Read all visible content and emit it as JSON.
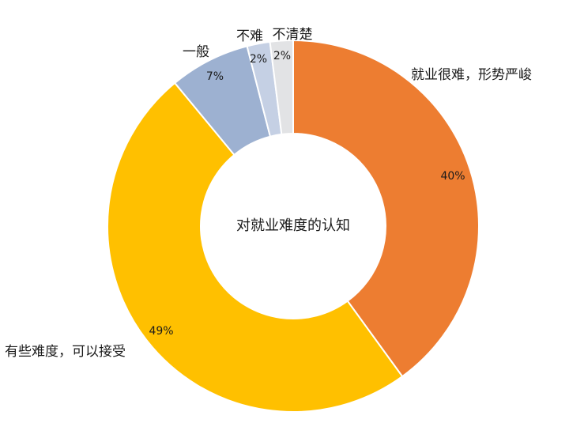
{
  "chart_data": {
    "type": "pie",
    "style": "donut",
    "title": "对就业难度的认知",
    "categories": [
      "就业很难，形势严峻",
      "有些难度，可以接受",
      "一般",
      "不难",
      "不清楚"
    ],
    "values": [
      40,
      49,
      7,
      2,
      2
    ],
    "value_labels": [
      "40%",
      "49%",
      "7%",
      "2%",
      "2%"
    ],
    "colors": [
      "#ED7D31",
      "#FFC000",
      "#9DB1D1",
      "#C5D0E4",
      "#E2E3E5"
    ],
    "legend": "none"
  }
}
